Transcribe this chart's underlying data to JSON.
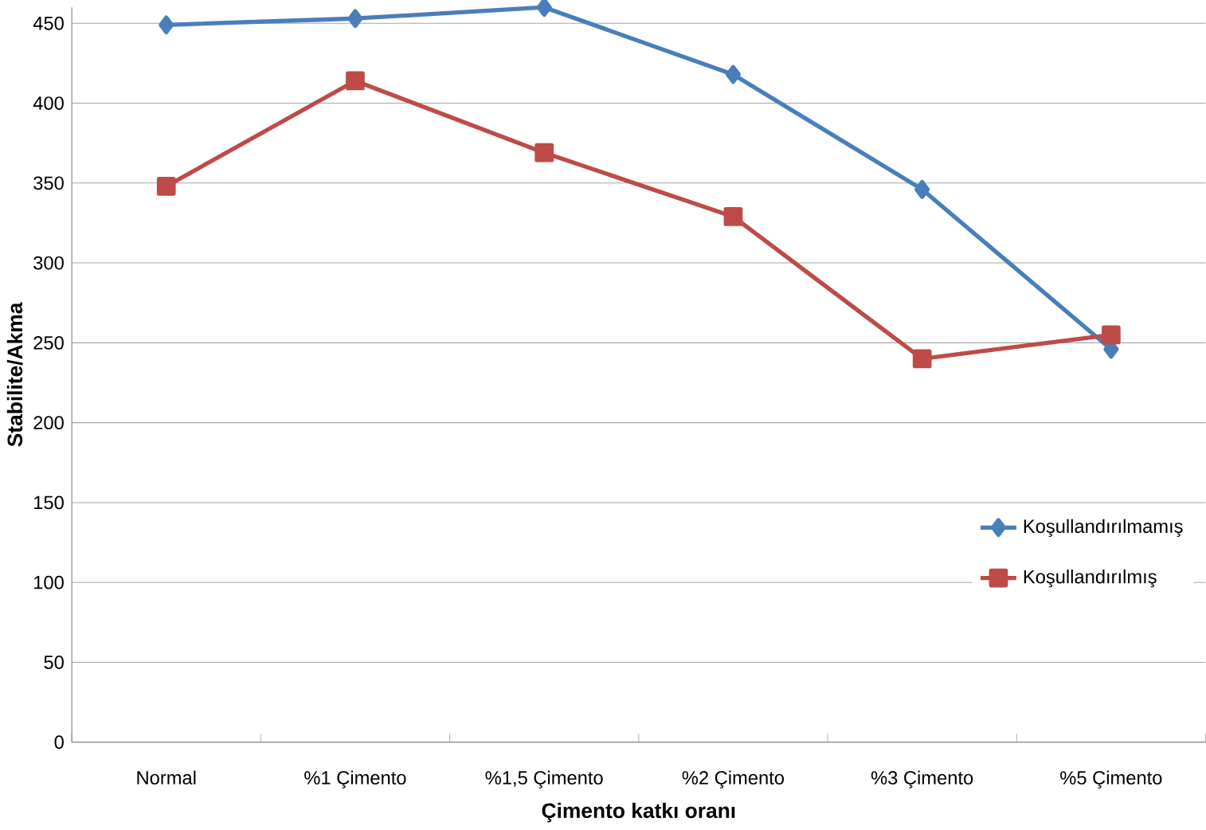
{
  "chart_data": {
    "type": "line",
    "xlabel": "Çimento katkı oranı",
    "ylabel": "Stabilite/Akma",
    "categories": [
      "Normal",
      "%1 Çimento",
      "%1,5 Çimento",
      "%2 Çimento",
      "%3 Çimento",
      "%5 Çimento"
    ],
    "series": [
      {
        "name": "Koşullandırılmamış",
        "color": "#4a7ebb",
        "marker": "diamond",
        "values": [
          449,
          453,
          460,
          418,
          346,
          246
        ]
      },
      {
        "name": "Koşullandırılmış",
        "color": "#be4b48",
        "marker": "square",
        "values": [
          348,
          414,
          369,
          329,
          240,
          255
        ]
      }
    ],
    "ylim": [
      0,
      460
    ],
    "yticks": [
      0,
      50,
      100,
      150,
      200,
      250,
      300,
      350,
      400,
      450
    ],
    "grid": "y",
    "legend": "right"
  }
}
